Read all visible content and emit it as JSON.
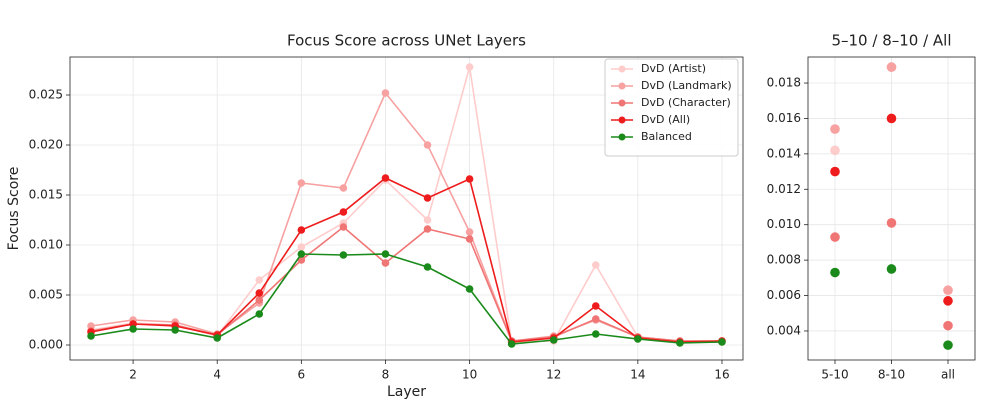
{
  "chart_data": [
    {
      "type": "line",
      "title": "Focus Score across UNet Layers",
      "xlabel": "Layer",
      "ylabel": "Focus Score",
      "x": [
        1,
        2,
        3,
        4,
        5,
        6,
        7,
        8,
        9,
        10,
        11,
        12,
        13,
        14,
        15,
        16
      ],
      "xlim": [
        0.5,
        16.5
      ],
      "xticks": [
        2,
        4,
        6,
        8,
        10,
        12,
        14,
        16
      ],
      "ylim": [
        -0.0015,
        0.0288
      ],
      "yticks": [
        {
          "value": 0,
          "label": "0.000"
        },
        {
          "value": 0.005,
          "label": "0.005"
        },
        {
          "value": 0.01,
          "label": "0.010"
        },
        {
          "value": 0.015,
          "label": "0.015"
        },
        {
          "value": 0.02,
          "label": "0.020"
        },
        {
          "value": 0.025,
          "label": "0.025"
        }
      ],
      "grid": true,
      "legend": "upper right",
      "series": [
        {
          "name": "DvD (Artist)",
          "color": "#ffcccc",
          "values": [
            0.0015,
            0.0022,
            0.002,
            0.0009,
            0.0065,
            0.0098,
            0.0122,
            0.0165,
            0.0125,
            0.0278,
            0.0003,
            0.0004,
            0.008,
            0.0008,
            0.0003,
            0.0003
          ]
        },
        {
          "name": "DvD (Landmark)",
          "color": "#f7a1a1",
          "values": [
            0.0019,
            0.0025,
            0.0023,
            0.0011,
            0.0042,
            0.0162,
            0.0157,
            0.0252,
            0.02,
            0.0113,
            0.0004,
            0.0009,
            0.0025,
            0.0008,
            0.0004,
            0.0004
          ]
        },
        {
          "name": "DvD (Character)",
          "color": "#f07575",
          "values": [
            0.0014,
            0.0021,
            0.002,
            0.001,
            0.0045,
            0.0085,
            0.0118,
            0.0082,
            0.0116,
            0.0106,
            0.0004,
            0.0008,
            0.0026,
            0.0008,
            0.0004,
            0.0004
          ]
        },
        {
          "name": "DvD (All)",
          "color": "#ee1c1c",
          "values": [
            0.0013,
            0.0021,
            0.0019,
            0.001,
            0.0052,
            0.0115,
            0.0133,
            0.0167,
            0.0147,
            0.0166,
            0.0003,
            0.0007,
            0.0039,
            0.0007,
            0.0003,
            0.0004
          ]
        },
        {
          "name": "Balanced",
          "color": "#1a8a1a",
          "values": [
            0.0009,
            0.0016,
            0.0015,
            0.0007,
            0.0031,
            0.0091,
            0.009,
            0.0091,
            0.0078,
            0.0056,
            0.0001,
            0.0005,
            0.0011,
            0.0006,
            0.0002,
            0.0003
          ]
        }
      ]
    },
    {
      "type": "scatter",
      "title": "5–10 / 8–10 / All",
      "categories": [
        "5-10",
        "8-10",
        "all"
      ],
      "ylim": [
        0.00236,
        0.01947
      ],
      "yticks": [
        {
          "value": 0.004,
          "label": "0.004"
        },
        {
          "value": 0.006,
          "label": "0.006"
        },
        {
          "value": 0.008,
          "label": "0.008"
        },
        {
          "value": 0.01,
          "label": "0.010"
        },
        {
          "value": 0.012,
          "label": "0.012"
        },
        {
          "value": 0.014,
          "label": "0.014"
        },
        {
          "value": 0.016,
          "label": "0.016"
        },
        {
          "value": 0.018,
          "label": "0.018"
        }
      ],
      "grid": true,
      "series": [
        {
          "color": "#ffcccc",
          "values": [
            0.0142,
            0.0189,
            0.0063
          ]
        },
        {
          "color": "#f7a1a1",
          "values": [
            0.0154,
            0.0189,
            0.0063
          ]
        },
        {
          "color": "#f07575",
          "values": [
            0.0093,
            0.0101,
            0.0043
          ]
        },
        {
          "color": "#ee1c1c",
          "values": [
            0.013,
            0.016,
            0.0057
          ]
        },
        {
          "color": "#1a8a1a",
          "values": [
            0.0073,
            0.0075,
            0.0032
          ]
        }
      ]
    }
  ]
}
